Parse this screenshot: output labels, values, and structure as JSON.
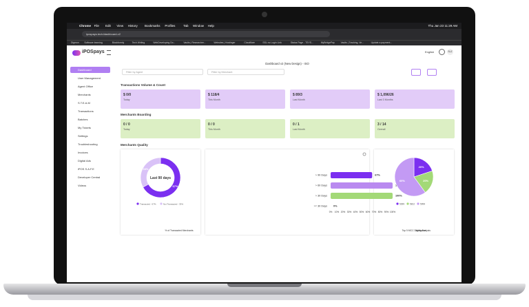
{
  "menubar": {
    "items": [
      "Chrome",
      "File",
      "Edit",
      "View",
      "History",
      "Bookmarks",
      "Profiles",
      "Tab",
      "Window",
      "Help"
    ],
    "clock": "Thu Jan 23 11:29 AM"
  },
  "browser": {
    "url": "ipospays.tech/dashboard-v2",
    "bookmarks": [
      "Digmon",
      "Software learning",
      "Blockformly",
      "Tech Writing",
      "WebDeveloping Do...",
      "Vaults | Researcher...",
      "Websites | Hostinger",
      "Cloudflare",
      "SSL no Login Link",
      "Status Page - TSYS...",
      "MyBridgePay",
      "Vaults | Tracking, Ve...",
      "Update a payment..."
    ]
  },
  "app": {
    "logo": "iPOSpays",
    "language": "English",
    "avatar": "SLZ",
    "sidebar": [
      "Dashboard",
      "User Management",
      "Agent Office",
      "Merchants",
      "S.T.E.A.M",
      "Transactions",
      "Batches",
      "My Tickets",
      "Settings",
      "Troubleshooting",
      "Invoices",
      "Digital Ads",
      "iPOS S.A.F.E",
      "Developer Central",
      "Videos"
    ],
    "page_title": "Dashboard v2 (New Design) - ISO",
    "filters": [
      "Filter by Agent",
      "Filter by Merchant"
    ],
    "volume": {
      "title": "Transactions Volume & Count",
      "cards": [
        {
          "value": "$ 0/0",
          "label": "Today"
        },
        {
          "value": "$ 118/4",
          "label": "This Month"
        },
        {
          "value": "$ 89/3",
          "label": "Last Month"
        },
        {
          "value": "$ 1,096/26",
          "label": "Last 3 Months"
        }
      ]
    },
    "boarding": {
      "title": "Merchants Boarding",
      "cards": [
        {
          "value": "0 / 0",
          "label": "Today"
        },
        {
          "value": "0 / 0",
          "label": "This Month"
        },
        {
          "value": "0 / 1",
          "label": "Last Month"
        },
        {
          "value": "3 / 14",
          "label": "Overall"
        }
      ]
    },
    "quality": {
      "title": "Merchants Quality",
      "donut": {
        "center": "Last 90 days",
        "values": [
          67,
          33
        ],
        "value_labels": [
          "67%",
          "33%"
        ],
        "legend": [
          "Transacted - 67%",
          "Not Transacted - 33%"
        ],
        "colors": [
          "#7b2ff0",
          "#d9c2f7"
        ],
        "caption": "% of Transacted Merchants"
      },
      "aging": {
        "categories": [
          "> 90 Days",
          "> 60 Days",
          "> 30 Days",
          ">= 30 Days"
        ],
        "values": [
          67,
          100,
          100,
          0
        ],
        "value_labels": [
          "67%",
          "100%",
          "100%",
          "0%"
        ],
        "colors": [
          "#7b2ff0",
          "#b98af0",
          "#a3d977",
          "#7b2ff0"
        ],
        "xlim": [
          0,
          100
        ],
        "xticks": [
          {
            "value": 0,
            "label": "0%"
          },
          {
            "value": 10,
            "label": "10%"
          },
          {
            "value": 20,
            "label": "20%"
          },
          {
            "value": 30,
            "label": "30%"
          },
          {
            "value": 40,
            "label": "40%"
          },
          {
            "value": 50,
            "label": "50%"
          },
          {
            "value": 60,
            "label": "60%"
          },
          {
            "value": 70,
            "label": "70%"
          },
          {
            "value": 80,
            "label": "80%"
          },
          {
            "value": 90,
            "label": "90%"
          },
          {
            "value": 100,
            "label": "100%"
          }
        ],
        "caption": "Aging Analysis"
      },
      "mcc": {
        "categories": [
          "5399",
          "5812",
          "5999"
        ],
        "values": [
          20,
          20,
          60
        ],
        "value_labels": [
          "20%",
          "20%",
          "60%"
        ],
        "colors": [
          "#7b2ff0",
          "#a3d977",
          "#c39af4"
        ],
        "caption": "Top 5 MCC Distribution"
      }
    }
  }
}
